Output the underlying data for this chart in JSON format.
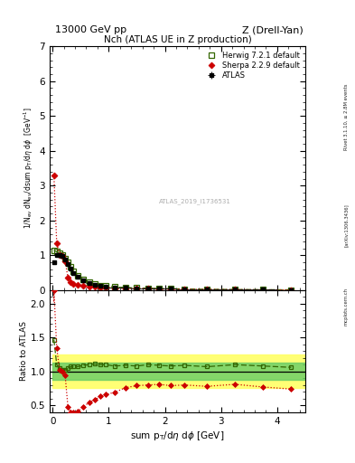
{
  "title_top": "13000 GeV pp",
  "title_right": "Z (Drell-Yan)",
  "plot_title": "Nch (ATLAS UE in Z production)",
  "ylabel_ratio": "Ratio to ATLAS",
  "xlabel": "sum p_{T}/d#eta d#phi [GeV]",
  "watermark": "ATLAS_2019_I1736531",
  "side_text1": "Rivet 3.1.10, ≥ 2.8M events",
  "side_text2": "[arXiv:1306.3436]",
  "side_text3": "mcplots.cern.ch",
  "atlas_x": [
    0.025,
    0.075,
    0.125,
    0.175,
    0.225,
    0.275,
    0.325,
    0.375,
    0.45,
    0.55,
    0.65,
    0.75,
    0.85,
    0.95,
    1.1,
    1.3,
    1.5,
    1.7,
    1.9,
    2.1,
    2.35,
    2.75,
    3.25,
    3.75,
    4.25
  ],
  "atlas_y": [
    0.8,
    1.0,
    1.0,
    0.97,
    0.88,
    0.76,
    0.62,
    0.5,
    0.38,
    0.27,
    0.2,
    0.155,
    0.125,
    0.105,
    0.085,
    0.068,
    0.058,
    0.05,
    0.043,
    0.038,
    0.031,
    0.023,
    0.016,
    0.012,
    0.008
  ],
  "atlas_xerr": [
    0.025,
    0.025,
    0.025,
    0.025,
    0.025,
    0.025,
    0.025,
    0.025,
    0.05,
    0.05,
    0.05,
    0.05,
    0.05,
    0.05,
    0.1,
    0.1,
    0.1,
    0.1,
    0.1,
    0.1,
    0.15,
    0.25,
    0.25,
    0.25,
    0.25
  ],
  "atlas_yerr": [
    0.04,
    0.04,
    0.04,
    0.04,
    0.03,
    0.025,
    0.022,
    0.018,
    0.013,
    0.009,
    0.007,
    0.005,
    0.004,
    0.004,
    0.003,
    0.002,
    0.002,
    0.002,
    0.001,
    0.001,
    0.001,
    0.001,
    0.001,
    0.001,
    0.0005
  ],
  "herwig_x": [
    0.025,
    0.075,
    0.125,
    0.175,
    0.225,
    0.275,
    0.325,
    0.375,
    0.45,
    0.55,
    0.65,
    0.75,
    0.85,
    0.95,
    1.1,
    1.3,
    1.5,
    1.7,
    1.9,
    2.1,
    2.35,
    2.75,
    3.25,
    3.75,
    4.25
  ],
  "herwig_y": [
    1.15,
    1.1,
    1.05,
    1.0,
    0.9,
    0.8,
    0.67,
    0.54,
    0.41,
    0.3,
    0.22,
    0.172,
    0.138,
    0.115,
    0.092,
    0.074,
    0.063,
    0.055,
    0.047,
    0.041,
    0.034,
    0.025,
    0.018,
    0.013,
    0.009
  ],
  "sherpa_x": [
    0.025,
    0.075,
    0.125,
    0.175,
    0.225,
    0.275,
    0.325,
    0.375,
    0.45,
    0.55,
    0.65,
    0.75,
    0.85,
    0.95,
    1.1,
    1.3,
    1.5,
    1.7,
    1.9,
    2.1,
    2.35,
    2.75,
    3.25,
    3.75,
    4.25
  ],
  "sherpa_y": [
    3.3,
    1.35,
    1.02,
    0.97,
    0.83,
    0.36,
    0.24,
    0.19,
    0.16,
    0.13,
    0.11,
    0.09,
    0.08,
    0.07,
    0.06,
    0.052,
    0.046,
    0.04,
    0.035,
    0.03,
    0.025,
    0.018,
    0.013,
    0.009,
    0.006
  ],
  "herwig_ratio": [
    1.47,
    1.1,
    1.05,
    1.02,
    1.02,
    1.05,
    1.07,
    1.07,
    1.07,
    1.09,
    1.1,
    1.11,
    1.1,
    1.1,
    1.08,
    1.09,
    1.08,
    1.1,
    1.09,
    1.08,
    1.09,
    1.07,
    1.1,
    1.08,
    1.06
  ],
  "sherpa_ratio": [
    4.1,
    1.35,
    1.02,
    1.0,
    0.94,
    0.47,
    0.38,
    0.38,
    0.41,
    0.48,
    0.54,
    0.58,
    0.63,
    0.66,
    0.69,
    0.76,
    0.79,
    0.8,
    0.81,
    0.79,
    0.8,
    0.78,
    0.81,
    0.77,
    0.74
  ],
  "bin_edges": [
    0.0,
    0.05,
    0.1,
    0.15,
    0.2,
    0.25,
    0.3,
    0.35,
    0.4,
    0.5,
    0.6,
    0.7,
    0.8,
    0.9,
    1.0,
    1.2,
    1.4,
    1.6,
    1.8,
    2.0,
    2.2,
    2.5,
    3.0,
    3.5,
    4.0,
    4.5
  ],
  "band_yellow_lo": 0.75,
  "band_yellow_hi": 1.25,
  "band_green_lo": 0.875,
  "band_green_hi": 1.125,
  "xlim": [
    -0.05,
    4.5
  ],
  "ylim_main": [
    0,
    7
  ],
  "ylim_ratio": [
    0.4,
    2.2
  ],
  "yticks_main": [
    0,
    1,
    2,
    3,
    4,
    5,
    6,
    7
  ],
  "yticks_ratio": [
    0.5,
    1.0,
    1.5,
    2.0
  ],
  "xticks": [
    0,
    1,
    2,
    3,
    4
  ],
  "color_atlas": "#000000",
  "color_herwig": "#336600",
  "color_sherpa": "#cc0000",
  "color_band_yellow": "#ffff66",
  "color_band_green": "#66cc66",
  "figsize": [
    3.93,
    5.12
  ],
  "dpi": 100
}
